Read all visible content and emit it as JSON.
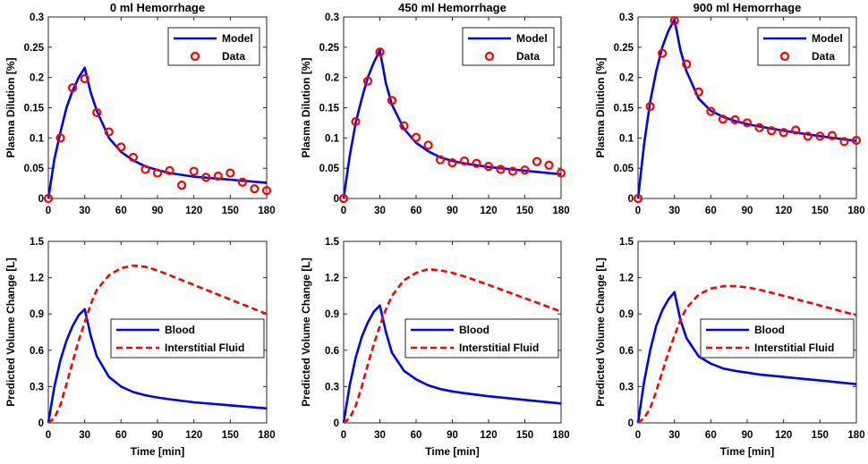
{
  "chart_data": [
    {
      "type": "line",
      "title": "0 ml Hemorrhage",
      "xlabel": "",
      "ylabel": "Plasma Dilution [%]",
      "xlim": [
        0,
        180
      ],
      "ylim": [
        0,
        0.3
      ],
      "xticks": [
        0,
        30,
        60,
        90,
        120,
        150,
        180
      ],
      "yticks": [
        0,
        0.05,
        0.1,
        0.15,
        0.2,
        0.25,
        0.3
      ],
      "ytick_labels": [
        "0",
        "0.05",
        "0.1",
        "0.15",
        "0.2",
        "0.25",
        "0.3"
      ],
      "legend": "top-right",
      "series": [
        {
          "name": "Model",
          "style": "line",
          "color": "#0000ff",
          "x": [
            0,
            5,
            10,
            15,
            20,
            25,
            30,
            35,
            40,
            50,
            60,
            70,
            80,
            90,
            100,
            120,
            150,
            180
          ],
          "y": [
            0,
            0.065,
            0.11,
            0.15,
            0.178,
            0.2,
            0.216,
            0.175,
            0.145,
            0.1,
            0.077,
            0.063,
            0.053,
            0.047,
            0.042,
            0.036,
            0.031,
            0.026
          ]
        },
        {
          "name": "Data",
          "style": "marker",
          "color": "#ff0000",
          "x": [
            0,
            10,
            20,
            30,
            40,
            50,
            60,
            70,
            80,
            90,
            100,
            110,
            120,
            130,
            140,
            150,
            160,
            170,
            180
          ],
          "y": [
            0,
            0.1,
            0.183,
            0.198,
            0.142,
            0.11,
            0.085,
            0.068,
            0.048,
            0.042,
            0.046,
            0.022,
            0.045,
            0.035,
            0.037,
            0.042,
            0.027,
            0.016,
            0.013
          ]
        }
      ]
    },
    {
      "type": "line",
      "title": "450 ml Hemorrhage",
      "xlabel": "",
      "ylabel": "Plasma Dilution [%]",
      "xlim": [
        0,
        180
      ],
      "ylim": [
        0,
        0.3
      ],
      "xticks": [
        0,
        30,
        60,
        90,
        120,
        150,
        180
      ],
      "yticks": [
        0,
        0.05,
        0.1,
        0.15,
        0.2,
        0.25,
        0.3
      ],
      "ytick_labels": [
        "0",
        "0.05",
        "0.1",
        "0.15",
        "0.2",
        "0.25",
        "0.3"
      ],
      "legend": "top-right",
      "series": [
        {
          "name": "Model",
          "style": "line",
          "color": "#0000ff",
          "x": [
            0,
            5,
            10,
            15,
            20,
            25,
            30,
            35,
            40,
            50,
            60,
            70,
            80,
            90,
            100,
            120,
            150,
            180
          ],
          "y": [
            0,
            0.07,
            0.125,
            0.165,
            0.2,
            0.225,
            0.245,
            0.19,
            0.155,
            0.115,
            0.092,
            0.078,
            0.068,
            0.062,
            0.058,
            0.052,
            0.046,
            0.04
          ]
        },
        {
          "name": "Data",
          "style": "marker",
          "color": "#ff0000",
          "x": [
            0,
            10,
            20,
            30,
            40,
            50,
            60,
            70,
            80,
            90,
            100,
            110,
            120,
            130,
            140,
            150,
            160,
            170,
            180
          ],
          "y": [
            0,
            0.127,
            0.194,
            0.242,
            0.162,
            0.12,
            0.101,
            0.088,
            0.064,
            0.059,
            0.062,
            0.058,
            0.053,
            0.048,
            0.045,
            0.047,
            0.061,
            0.055,
            0.042
          ]
        }
      ]
    },
    {
      "type": "line",
      "title": "900 ml Hemorrhage",
      "xlabel": "",
      "ylabel": "Plasma Dilution [%]",
      "xlim": [
        0,
        180
      ],
      "ylim": [
        0,
        0.3
      ],
      "xticks": [
        0,
        30,
        60,
        90,
        120,
        150,
        180
      ],
      "yticks": [
        0,
        0.05,
        0.1,
        0.15,
        0.2,
        0.25,
        0.3
      ],
      "ytick_labels": [
        "0",
        "0.05",
        "0.1",
        "0.15",
        "0.2",
        "0.25",
        "0.3"
      ],
      "legend": "top-right",
      "series": [
        {
          "name": "Model",
          "style": "line",
          "color": "#0000ff",
          "x": [
            0,
            5,
            10,
            15,
            20,
            25,
            30,
            35,
            40,
            50,
            60,
            70,
            80,
            90,
            100,
            120,
            150,
            180
          ],
          "y": [
            0,
            0.09,
            0.16,
            0.21,
            0.25,
            0.277,
            0.296,
            0.245,
            0.21,
            0.165,
            0.145,
            0.135,
            0.128,
            0.123,
            0.119,
            0.112,
            0.103,
            0.095
          ]
        },
        {
          "name": "Data",
          "style": "marker",
          "color": "#ff0000",
          "x": [
            0,
            10,
            20,
            30,
            40,
            50,
            60,
            70,
            80,
            90,
            100,
            110,
            120,
            130,
            140,
            150,
            160,
            170,
            180
          ],
          "y": [
            0,
            0.152,
            0.24,
            0.294,
            0.222,
            0.176,
            0.144,
            0.131,
            0.13,
            0.125,
            0.117,
            0.112,
            0.109,
            0.113,
            0.103,
            0.103,
            0.104,
            0.094,
            0.096
          ]
        }
      ]
    },
    {
      "type": "line",
      "title": "",
      "xlabel": "Time [min]",
      "ylabel": "Predicted Volume Change [L]",
      "xlim": [
        0,
        180
      ],
      "ylim": [
        0,
        1.5
      ],
      "xticks": [
        0,
        30,
        60,
        90,
        120,
        150,
        180
      ],
      "yticks": [
        0,
        0.3,
        0.6,
        0.9,
        1.2,
        1.5
      ],
      "ytick_labels": [
        "0",
        "0.3",
        "0.6",
        "0.9",
        "1.2",
        "1.5"
      ],
      "legend": "center-right",
      "series": [
        {
          "name": "Blood",
          "style": "line",
          "color": "#0000ff",
          "x": [
            0,
            5,
            10,
            15,
            20,
            25,
            30,
            35,
            40,
            50,
            60,
            70,
            80,
            90,
            100,
            120,
            150,
            180
          ],
          "y": [
            0,
            0.3,
            0.52,
            0.68,
            0.8,
            0.89,
            0.94,
            0.72,
            0.55,
            0.38,
            0.3,
            0.255,
            0.228,
            0.21,
            0.195,
            0.17,
            0.145,
            0.12
          ]
        },
        {
          "name": "Interstitial Fluid",
          "style": "dashed",
          "color": "#ff0000",
          "x": [
            0,
            5,
            10,
            15,
            20,
            25,
            30,
            35,
            40,
            50,
            60,
            70,
            80,
            90,
            100,
            120,
            150,
            180
          ],
          "y": [
            0,
            0.04,
            0.15,
            0.32,
            0.5,
            0.68,
            0.83,
            0.98,
            1.1,
            1.22,
            1.28,
            1.3,
            1.29,
            1.26,
            1.22,
            1.14,
            1.02,
            0.9
          ]
        }
      ]
    },
    {
      "type": "line",
      "title": "",
      "xlabel": "Time [min]",
      "ylabel": "Predicted Volume Change [L]",
      "xlim": [
        0,
        180
      ],
      "ylim": [
        0,
        1.5
      ],
      "xticks": [
        0,
        30,
        60,
        90,
        120,
        150,
        180
      ],
      "yticks": [
        0,
        0.3,
        0.6,
        0.9,
        1.2,
        1.5
      ],
      "ytick_labels": [
        "0",
        "0.3",
        "0.6",
        "0.9",
        "1.2",
        "1.5"
      ],
      "legend": "center-right",
      "series": [
        {
          "name": "Blood",
          "style": "line",
          "color": "#0000ff",
          "x": [
            0,
            5,
            10,
            15,
            20,
            25,
            30,
            35,
            40,
            50,
            60,
            70,
            80,
            90,
            100,
            120,
            150,
            180
          ],
          "y": [
            0,
            0.31,
            0.54,
            0.71,
            0.83,
            0.92,
            0.97,
            0.75,
            0.58,
            0.43,
            0.36,
            0.31,
            0.28,
            0.26,
            0.245,
            0.22,
            0.19,
            0.16
          ]
        },
        {
          "name": "Interstitial Fluid",
          "style": "dashed",
          "color": "#ff0000",
          "x": [
            0,
            5,
            10,
            15,
            20,
            25,
            30,
            35,
            40,
            50,
            60,
            70,
            80,
            90,
            100,
            120,
            150,
            180
          ],
          "y": [
            0,
            0.04,
            0.14,
            0.3,
            0.48,
            0.65,
            0.8,
            0.94,
            1.05,
            1.18,
            1.24,
            1.27,
            1.26,
            1.24,
            1.21,
            1.14,
            1.03,
            0.92
          ]
        }
      ]
    },
    {
      "type": "line",
      "title": "",
      "xlabel": "Time [min]",
      "ylabel": "Predicted Volume Change [L]",
      "xlim": [
        0,
        180
      ],
      "ylim": [
        0,
        1.5
      ],
      "xticks": [
        0,
        30,
        60,
        90,
        120,
        150,
        180
      ],
      "yticks": [
        0,
        0.3,
        0.6,
        0.9,
        1.2,
        1.5
      ],
      "ytick_labels": [
        "0",
        "0.3",
        "0.6",
        "0.9",
        "1.2",
        "1.5"
      ],
      "legend": "center-right",
      "series": [
        {
          "name": "Blood",
          "style": "line",
          "color": "#0000ff",
          "x": [
            0,
            5,
            10,
            15,
            20,
            25,
            30,
            35,
            40,
            50,
            60,
            70,
            80,
            90,
            100,
            120,
            150,
            180
          ],
          "y": [
            0,
            0.34,
            0.6,
            0.8,
            0.93,
            1.02,
            1.08,
            0.85,
            0.7,
            0.55,
            0.49,
            0.45,
            0.43,
            0.415,
            0.4,
            0.38,
            0.35,
            0.32
          ]
        },
        {
          "name": "Interstitial Fluid",
          "style": "dashed",
          "color": "#ff0000",
          "x": [
            0,
            5,
            10,
            15,
            20,
            25,
            30,
            35,
            40,
            50,
            60,
            70,
            80,
            90,
            100,
            120,
            150,
            180
          ],
          "y": [
            0,
            0.04,
            0.12,
            0.26,
            0.42,
            0.58,
            0.72,
            0.85,
            0.95,
            1.06,
            1.11,
            1.13,
            1.13,
            1.12,
            1.1,
            1.05,
            0.97,
            0.89
          ]
        }
      ]
    }
  ],
  "colors": {
    "model": "#0000ff",
    "data": "#ff0000",
    "axis": "#262626",
    "background": "#ffffff"
  }
}
